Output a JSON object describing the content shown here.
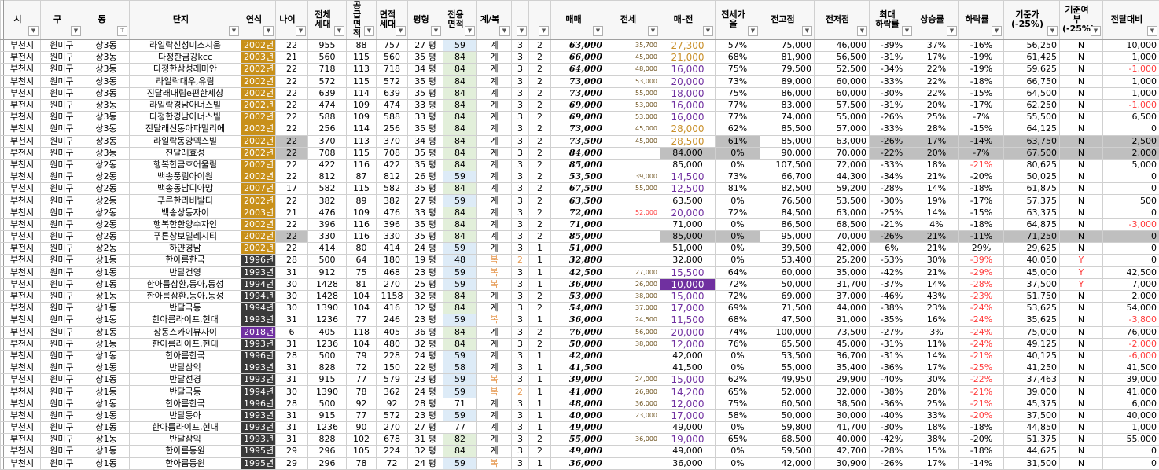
{
  "headers": [
    {
      "label": "시"
    },
    {
      "label": "구"
    },
    {
      "label": "동",
      "filter_active": true
    },
    {
      "label": "단지"
    },
    {
      "label": "연식"
    },
    {
      "label": "나이"
    },
    {
      "label": "전체\n세대"
    },
    {
      "label": "공급\n면적"
    },
    {
      "label": "면적\n세대"
    },
    {
      "label": "평형"
    },
    {
      "label": "전용\n면적"
    },
    {
      "label": "계/복"
    },
    {
      "label": ""
    },
    {
      "label": ""
    },
    {
      "label": "매매"
    },
    {
      "label": "전세"
    },
    {
      "label": "매-전"
    },
    {
      "label": "전세가율"
    },
    {
      "label": "전고점"
    },
    {
      "label": "전저점"
    },
    {
      "label": "최대\n하락률"
    },
    {
      "label": "상승률"
    },
    {
      "label": "하락률"
    },
    {
      "label": "기준가\n(-25%)"
    },
    {
      "label": "기준여부\n(-25%)"
    },
    {
      "label": "전달대비"
    }
  ],
  "colors": {
    "year_new": "#c8901a",
    "year_old": "#3a3a3a",
    "year_2018": "#7030a0",
    "gap_orange": "#c9902a",
    "gap_purple": "#7030a0",
    "negative": "#ff3b3b",
    "highlight_gray": "#bfbfbf"
  },
  "rows": [
    {
      "c": [
        "부천시",
        "원미구",
        "상3동",
        "라일락신성미소지움",
        "2002년",
        "22",
        "955",
        "88",
        "757",
        "27 평",
        "59",
        "계",
        "3",
        "2",
        "63,000",
        "35,700",
        "27,300",
        "57%",
        "75,000",
        "46,000",
        "-39%",
        "37%",
        "-16%",
        "56,250",
        "N",
        "10,000"
      ]
    },
    {
      "c": [
        "부천시",
        "원미구",
        "상3동",
        "다정한금강kcc",
        "2003년",
        "21",
        "560",
        "115",
        "560",
        "35 평",
        "84",
        "계",
        "3",
        "2",
        "66,000",
        "45,000",
        "21,000",
        "68%",
        "81,900",
        "56,500",
        "-31%",
        "17%",
        "-19%",
        "61,425",
        "N",
        "1,000"
      ]
    },
    {
      "c": [
        "부천시",
        "원미구",
        "상3동",
        "다정한삼성래미안",
        "2002년",
        "22",
        "718",
        "113",
        "718",
        "34 평",
        "84",
        "계",
        "3",
        "2",
        "64,000",
        "48,000",
        "16,000",
        "75%",
        "79,500",
        "52,500",
        "-34%",
        "22%",
        "-19%",
        "59,625",
        "N",
        "-1,000"
      ]
    },
    {
      "c": [
        "부천시",
        "원미구",
        "상3동",
        "라일락대우,유림",
        "2002년",
        "22",
        "572",
        "115",
        "572",
        "35 평",
        "84",
        "계",
        "3",
        "2",
        "73,000",
        "53,000",
        "20,000",
        "73%",
        "89,000",
        "60,000",
        "-33%",
        "22%",
        "-18%",
        "66,750",
        "N",
        "1,000"
      ]
    },
    {
      "c": [
        "부천시",
        "원미구",
        "상3동",
        "진달래대림e편한세상",
        "2002년",
        "22",
        "639",
        "114",
        "639",
        "35 평",
        "84",
        "계",
        "3",
        "2",
        "73,000",
        "55,000",
        "18,000",
        "75%",
        "86,000",
        "60,000",
        "-30%",
        "22%",
        "-15%",
        "64,500",
        "N",
        "1,000"
      ]
    },
    {
      "c": [
        "부천시",
        "원미구",
        "상3동",
        "라일락경남아너스빌",
        "2002년",
        "22",
        "474",
        "109",
        "474",
        "33 평",
        "84",
        "계",
        "3",
        "2",
        "69,000",
        "53,000",
        "16,000",
        "77%",
        "83,000",
        "57,500",
        "-31%",
        "20%",
        "-17%",
        "62,250",
        "N",
        "-1,000"
      ]
    },
    {
      "c": [
        "부천시",
        "원미구",
        "상3동",
        "다정한경남아너스빌",
        "2002년",
        "22",
        "588",
        "109",
        "588",
        "33 평",
        "84",
        "계",
        "3",
        "2",
        "69,000",
        "53,000",
        "16,000",
        "77%",
        "74,000",
        "55,000",
        "-26%",
        "25%",
        "-7%",
        "55,500",
        "N",
        "6,500"
      ]
    },
    {
      "c": [
        "부천시",
        "원미구",
        "상3동",
        "진달래신동아파밀리에",
        "2002년",
        "22",
        "256",
        "114",
        "256",
        "35 평",
        "84",
        "계",
        "3",
        "2",
        "73,000",
        "45,000",
        "28,000",
        "62%",
        "85,500",
        "57,000",
        "-33%",
        "28%",
        "-15%",
        "64,125",
        "N",
        "0"
      ]
    },
    {
      "c": [
        "부천시",
        "원미구",
        "상3동",
        "라일락동양덱스빌",
        "2002년",
        "22",
        "370",
        "113",
        "370",
        "34 평",
        "84",
        "계",
        "3",
        "2",
        "73,500",
        "45,000",
        "28,500",
        "61%",
        "85,000",
        "63,000",
        "-26%",
        "17%",
        "-14%",
        "63,750",
        "N",
        "2,500"
      ],
      "gray": [
        5,
        17,
        20,
        21,
        22,
        23,
        24,
        25
      ]
    },
    {
      "c": [
        "부천시",
        "원미구",
        "상3동",
        "진달래효성",
        "2002년",
        "22",
        "708",
        "115",
        "708",
        "35 평",
        "84",
        "계",
        "3",
        "2",
        "84,000",
        "",
        "84,000",
        "0%",
        "90,000",
        "70,000",
        "-22%",
        "20%",
        "-7%",
        "67,500",
        "N",
        "2,000"
      ],
      "gray": [
        5,
        16,
        17,
        20,
        21,
        22,
        23,
        24,
        25
      ]
    },
    {
      "c": [
        "부천시",
        "원미구",
        "상2동",
        "행복한금호어울림",
        "2002년",
        "22",
        "422",
        "116",
        "422",
        "35 평",
        "84",
        "계",
        "3",
        "2",
        "85,000",
        "",
        "85,000",
        "0%",
        "107,500",
        "72,000",
        "-33%",
        "18%",
        "-21%",
        "80,625",
        "N",
        "5,000"
      ],
      "fall_red": true
    },
    {
      "c": [
        "부천시",
        "원미구",
        "상2동",
        "백송풍림아이원",
        "2002년",
        "22",
        "812",
        "87",
        "812",
        "26 평",
        "59",
        "계",
        "3",
        "2",
        "53,500",
        "39,000",
        "14,500",
        "73%",
        "66,700",
        "44,300",
        "-34%",
        "21%",
        "-20%",
        "50,025",
        "N",
        "0"
      ]
    },
    {
      "c": [
        "부천시",
        "원미구",
        "상2동",
        "백송동남디아망",
        "2007년",
        "17",
        "582",
        "115",
        "582",
        "35 평",
        "84",
        "계",
        "3",
        "2",
        "67,500",
        "55,000",
        "12,500",
        "81%",
        "82,500",
        "59,200",
        "-28%",
        "14%",
        "-18%",
        "61,875",
        "N",
        "0"
      ]
    },
    {
      "c": [
        "부천시",
        "원미구",
        "상2동",
        "푸른한라비발디",
        "2002년",
        "22",
        "382",
        "89",
        "382",
        "27 평",
        "59",
        "계",
        "3",
        "2",
        "63,500",
        "",
        "63,500",
        "0%",
        "76,500",
        "53,500",
        "-30%",
        "19%",
        "-17%",
        "57,375",
        "N",
        "500"
      ]
    },
    {
      "c": [
        "부천시",
        "원미구",
        "상2동",
        "백송상동자이",
        "2003년",
        "21",
        "476",
        "109",
        "476",
        "33 평",
        "84",
        "계",
        "3",
        "2",
        "72,000",
        "52,000",
        "20,000",
        "72%",
        "84,500",
        "63,000",
        "-25%",
        "14%",
        "-15%",
        "63,375",
        "N",
        "0"
      ],
      "jeonse_red": true
    },
    {
      "c": [
        "부천시",
        "원미구",
        "상2동",
        "행복한한양수자인",
        "2002년",
        "22",
        "396",
        "116",
        "396",
        "35 평",
        "84",
        "계",
        "3",
        "2",
        "71,000",
        "",
        "71,000",
        "0%",
        "86,500",
        "68,500",
        "-21%",
        "4%",
        "-18%",
        "64,875",
        "N",
        "-3,000"
      ]
    },
    {
      "c": [
        "부천시",
        "원미구",
        "상2동",
        "푸른창보밀레시티",
        "2002년",
        "22",
        "330",
        "116",
        "330",
        "35 평",
        "84",
        "계",
        "3",
        "2",
        "85,000",
        "",
        "85,000",
        "0%",
        "95,000",
        "70,000",
        "-26%",
        "21%",
        "-11%",
        "71,250",
        "N",
        "0"
      ],
      "gray": [
        5,
        16,
        17,
        20,
        21,
        22,
        23,
        24,
        25
      ]
    },
    {
      "c": [
        "부천시",
        "원미구",
        "상2동",
        "하얀경남",
        "2002년",
        "22",
        "414",
        "80",
        "414",
        "24 평",
        "59",
        "계",
        "3",
        "1",
        "51,000",
        "",
        "51,000",
        "0%",
        "39,500",
        "42,000",
        "6%",
        "21%",
        "29%",
        "29,625",
        "N",
        "0"
      ]
    },
    {
      "c": [
        "부천시",
        "원미구",
        "상1동",
        "한아름한국",
        "1996년",
        "28",
        "500",
        "64",
        "180",
        "19 평",
        "48",
        "복",
        "2",
        "1",
        "32,800",
        "",
        "32,800",
        "0%",
        "53,400",
        "25,200",
        "-53%",
        "30%",
        "-39%",
        "40,050",
        "Y",
        "0"
      ],
      "fall_red": true
    },
    {
      "c": [
        "부천시",
        "원미구",
        "상1동",
        "반달건영",
        "1993년",
        "31",
        "912",
        "75",
        "468",
        "23 평",
        "59",
        "복",
        "3",
        "1",
        "42,500",
        "27,000",
        "15,500",
        "64%",
        "60,000",
        "35,000",
        "-42%",
        "21%",
        "-29%",
        "45,000",
        "Y",
        "42,500"
      ],
      "fall_red": true
    },
    {
      "c": [
        "부천시",
        "원미구",
        "상1동",
        "한아름삼환,동아,동성",
        "1994년",
        "30",
        "1428",
        "81",
        "270",
        "25 평",
        "59",
        "복",
        "3",
        "1",
        "36,000",
        "26,000",
        "10,000",
        "72%",
        "50,000",
        "31,700",
        "-37%",
        "14%",
        "-28%",
        "37,500",
        "Y",
        "7,000"
      ],
      "fall_red": true,
      "gap_highlight": true
    },
    {
      "c": [
        "부천시",
        "원미구",
        "상1동",
        "한아름삼환,동아,동성",
        "1994년",
        "30",
        "1428",
        "104",
        "1158",
        "32 평",
        "84",
        "계",
        "3",
        "2",
        "53,000",
        "38,000",
        "15,000",
        "72%",
        "69,000",
        "37,000",
        "-46%",
        "43%",
        "-23%",
        "51,750",
        "N",
        "2,000"
      ],
      "fall_red": true
    },
    {
      "c": [
        "부천시",
        "원미구",
        "상1동",
        "반달극동",
        "1994년",
        "30",
        "1390",
        "104",
        "416",
        "32 평",
        "84",
        "계",
        "3",
        "2",
        "54,000",
        "37,000",
        "17,000",
        "69%",
        "71,500",
        "44,000",
        "-38%",
        "23%",
        "-24%",
        "53,625",
        "N",
        "54,000"
      ],
      "fall_red": true
    },
    {
      "c": [
        "부천시",
        "원미구",
        "상1동",
        "한아름라이프,현대",
        "1993년",
        "31",
        "1236",
        "77",
        "246",
        "23 평",
        "59",
        "복",
        "3",
        "1",
        "36,000",
        "24,500",
        "11,500",
        "68%",
        "47,500",
        "31,000",
        "-35%",
        "16%",
        "-24%",
        "35,625",
        "N",
        "-3,800"
      ],
      "fall_red": true
    },
    {
      "c": [
        "부천시",
        "원미구",
        "상1동",
        "상동스카이뷰자이",
        "2018년",
        "6",
        "405",
        "118",
        "405",
        "36 평",
        "84",
        "계",
        "3",
        "2",
        "76,000",
        "56,000",
        "20,000",
        "74%",
        "100,000",
        "73,500",
        "-27%",
        "3%",
        "-24%",
        "75,000",
        "N",
        "76,000"
      ],
      "fall_red": true
    },
    {
      "c": [
        "부천시",
        "원미구",
        "상1동",
        "한아름라이프,현대",
        "1993년",
        "31",
        "1236",
        "104",
        "480",
        "32 평",
        "84",
        "계",
        "3",
        "2",
        "50,000",
        "38,000",
        "12,000",
        "76%",
        "65,500",
        "45,000",
        "-31%",
        "11%",
        "-24%",
        "49,125",
        "N",
        "-2,000"
      ],
      "fall_red": true
    },
    {
      "c": [
        "부천시",
        "원미구",
        "상1동",
        "한아름한국",
        "1996년",
        "28",
        "500",
        "79",
        "228",
        "24 평",
        "59",
        "계",
        "3",
        "1",
        "42,000",
        "",
        "42,000",
        "0%",
        "53,500",
        "36,700",
        "-31%",
        "14%",
        "-21%",
        "40,125",
        "N",
        "-6,000"
      ],
      "fall_red": true
    },
    {
      "c": [
        "부천시",
        "원미구",
        "상1동",
        "반달삼익",
        "1993년",
        "31",
        "828",
        "72",
        "150",
        "22 평",
        "58",
        "계",
        "3",
        "1",
        "41,500",
        "",
        "41,500",
        "0%",
        "55,000",
        "35,400",
        "-36%",
        "17%",
        "-25%",
        "41,250",
        "N",
        "41,500"
      ],
      "fall_red": true
    },
    {
      "c": [
        "부천시",
        "원미구",
        "상1동",
        "반달선경",
        "1993년",
        "31",
        "915",
        "77",
        "579",
        "23 평",
        "59",
        "복",
        "3",
        "1",
        "39,000",
        "24,000",
        "15,000",
        "62%",
        "49,950",
        "29,900",
        "-40%",
        "30%",
        "-22%",
        "37,463",
        "N",
        "39,000"
      ],
      "fall_red": true
    },
    {
      "c": [
        "부천시",
        "원미구",
        "상1동",
        "반달극동",
        "1994년",
        "30",
        "1390",
        "78",
        "362",
        "24 평",
        "59",
        "복",
        "2",
        "1",
        "41,000",
        "26,800",
        "14,200",
        "65%",
        "52,000",
        "32,000",
        "-38%",
        "28%",
        "-21%",
        "39,000",
        "N",
        "41,000"
      ],
      "fall_red": true
    },
    {
      "c": [
        "부천시",
        "원미구",
        "상1동",
        "한아름한국",
        "1996년",
        "28",
        "500",
        "92",
        "92",
        "28 평",
        "71",
        "계",
        "3",
        "1",
        "48,000",
        "36,000",
        "12,000",
        "75%",
        "60,500",
        "38,500",
        "-36%",
        "25%",
        "-21%",
        "45,375",
        "N",
        "6,000"
      ],
      "fall_red": true
    },
    {
      "c": [
        "부천시",
        "원미구",
        "상1동",
        "반달동아",
        "1993년",
        "31",
        "915",
        "77",
        "572",
        "23 평",
        "59",
        "계",
        "3",
        "1",
        "40,000",
        "23,000",
        "17,000",
        "58%",
        "50,000",
        "30,000",
        "-40%",
        "33%",
        "-20%",
        "37,500",
        "N",
        "40,000"
      ],
      "fall_red": true
    },
    {
      "c": [
        "부천시",
        "원미구",
        "상1동",
        "한아름라이프,현대",
        "1993년",
        "31",
        "1236",
        "90",
        "270",
        "27 평",
        "77",
        "계",
        "3",
        "1",
        "49,000",
        "",
        "49,000",
        "0%",
        "59,800",
        "41,700",
        "-30%",
        "18%",
        "-18%",
        "44,850",
        "N",
        "1,000"
      ]
    },
    {
      "c": [
        "부천시",
        "원미구",
        "상1동",
        "반달삼익",
        "1993년",
        "31",
        "828",
        "102",
        "678",
        "31 평",
        "82",
        "계",
        "3",
        "2",
        "55,000",
        "36,000",
        "19,000",
        "65%",
        "68,500",
        "40,000",
        "-42%",
        "38%",
        "-20%",
        "51,375",
        "N",
        "55,000"
      ]
    },
    {
      "c": [
        "부천시",
        "원미구",
        "상1동",
        "한아름동원",
        "1995년",
        "29",
        "296",
        "105",
        "224",
        "32 평",
        "84",
        "계",
        "3",
        "2",
        "49,000",
        "",
        "49,000",
        "0%",
        "59,500",
        "42,700",
        "-28%",
        "15%",
        "-18%",
        "44,625",
        "N",
        "0"
      ]
    },
    {
      "c": [
        "부천시",
        "원미구",
        "상1동",
        "한아름동원",
        "1995년",
        "29",
        "296",
        "78",
        "72",
        "24 평",
        "59",
        "복",
        "3",
        "1",
        "36,000",
        "",
        "36,000",
        "0%",
        "42,000",
        "30,900",
        "-26%",
        "17%",
        "-14%",
        "31,500",
        "N",
        "0"
      ]
    }
  ]
}
